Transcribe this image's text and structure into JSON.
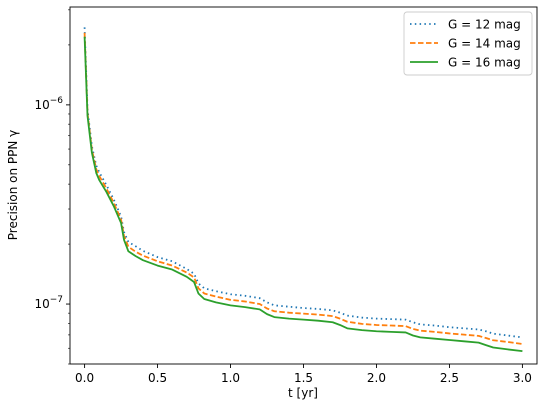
{
  "chart_data": {
    "type": "line",
    "xlabel": "t [yr]",
    "ylabel": "Precision on PPN γ",
    "xlim": [
      -0.1,
      3.1
    ],
    "ylim": [
      5e-08,
      3.1e-06
    ],
    "yscale": "log",
    "grid": false,
    "legend_position": "top-right",
    "x_ticks": [
      {
        "value": 0.0,
        "label": "0.0"
      },
      {
        "value": 0.5,
        "label": "0.5"
      },
      {
        "value": 1.0,
        "label": "1.0"
      },
      {
        "value": 1.5,
        "label": "1.5"
      },
      {
        "value": 2.0,
        "label": "2.0"
      },
      {
        "value": 2.5,
        "label": "2.5"
      },
      {
        "value": 3.0,
        "label": "3.0"
      }
    ],
    "y_ticks": [
      {
        "value": 1e-07,
        "base": "10",
        "exp": "−7"
      },
      {
        "value": 1e-06,
        "base": "10",
        "exp": "−6"
      }
    ],
    "series": [
      {
        "name": "G = 12 mag",
        "color": "#1f77b4",
        "style": "dotted",
        "x": [
          0.0,
          0.02,
          0.05,
          0.08,
          0.1,
          0.15,
          0.2,
          0.25,
          0.27,
          0.3,
          0.35,
          0.4,
          0.5,
          0.6,
          0.7,
          0.75,
          0.78,
          0.82,
          0.9,
          1.0,
          1.1,
          1.2,
          1.25,
          1.3,
          1.4,
          1.5,
          1.6,
          1.7,
          1.75,
          1.8,
          1.9,
          2.0,
          2.1,
          2.2,
          2.25,
          2.3,
          2.4,
          2.5,
          2.6,
          2.7,
          2.75,
          2.8,
          2.9,
          3.0
        ],
        "values": [
          2.45e-06,
          9.5e-07,
          6.2e-07,
          4.95e-07,
          4.6e-07,
          3.95e-07,
          3.35e-07,
          2.75e-07,
          2.3e-07,
          2.05e-07,
          1.95e-07,
          1.85e-07,
          1.72e-07,
          1.64e-07,
          1.5e-07,
          1.42e-07,
          1.27e-07,
          1.2e-07,
          1.16e-07,
          1.12e-07,
          1.1e-07,
          1.07e-07,
          1.02e-07,
          9.85e-08,
          9.7e-08,
          9.55e-08,
          9.45e-08,
          9.3e-08,
          9.05e-08,
          8.75e-08,
          8.55e-08,
          8.45e-08,
          8.4e-08,
          8.35e-08,
          8.1e-08,
          7.9e-08,
          7.8e-08,
          7.65e-08,
          7.55e-08,
          7.45e-08,
          7.3e-08,
          7.1e-08,
          6.95e-08,
          6.8e-08
        ]
      },
      {
        "name": "G = 14 mag",
        "color": "#ff7f0e",
        "style": "dashed",
        "x": [
          0.0,
          0.02,
          0.05,
          0.08,
          0.1,
          0.15,
          0.2,
          0.25,
          0.27,
          0.3,
          0.35,
          0.4,
          0.5,
          0.6,
          0.7,
          0.75,
          0.78,
          0.82,
          0.9,
          1.0,
          1.1,
          1.2,
          1.25,
          1.3,
          1.4,
          1.5,
          1.6,
          1.7,
          1.75,
          1.8,
          1.9,
          2.0,
          2.1,
          2.2,
          2.25,
          2.3,
          2.4,
          2.5,
          2.6,
          2.7,
          2.75,
          2.8,
          2.9,
          3.0
        ],
        "values": [
          2.3e-06,
          9.1e-07,
          5.95e-07,
          4.75e-07,
          4.4e-07,
          3.8e-07,
          3.22e-07,
          2.65e-07,
          2.2e-07,
          1.94e-07,
          1.83e-07,
          1.75e-07,
          1.64e-07,
          1.56e-07,
          1.44e-07,
          1.36e-07,
          1.2e-07,
          1.13e-07,
          1.09e-07,
          1.05e-07,
          1.03e-07,
          1e-07,
          9.5e-08,
          9.2e-08,
          9.05e-08,
          8.95e-08,
          8.85e-08,
          8.7e-08,
          8.45e-08,
          8.15e-08,
          7.95e-08,
          7.85e-08,
          7.8e-08,
          7.75e-08,
          7.5e-08,
          7.35e-08,
          7.25e-08,
          7.12e-08,
          7.02e-08,
          6.92e-08,
          6.75e-08,
          6.58e-08,
          6.45e-08,
          6.3e-08
        ]
      },
      {
        "name": "G = 16 mag",
        "color": "#2ca02c",
        "style": "solid",
        "x": [
          0.0,
          0.02,
          0.05,
          0.08,
          0.1,
          0.15,
          0.2,
          0.25,
          0.27,
          0.3,
          0.35,
          0.4,
          0.5,
          0.6,
          0.7,
          0.75,
          0.78,
          0.82,
          0.9,
          1.0,
          1.1,
          1.2,
          1.25,
          1.3,
          1.4,
          1.5,
          1.6,
          1.7,
          1.75,
          1.8,
          1.9,
          2.0,
          2.1,
          2.2,
          2.25,
          2.3,
          2.4,
          2.5,
          2.6,
          2.7,
          2.75,
          2.8,
          2.9,
          3.0
        ],
        "values": [
          2.2e-06,
          8.8e-07,
          5.75e-07,
          4.55e-07,
          4.2e-07,
          3.65e-07,
          3.1e-07,
          2.55e-07,
          2.1e-07,
          1.84e-07,
          1.74e-07,
          1.66e-07,
          1.56e-07,
          1.49e-07,
          1.37e-07,
          1.29e-07,
          1.13e-07,
          1.06e-07,
          1.02e-07,
          9.85e-08,
          9.65e-08,
          9.4e-08,
          8.9e-08,
          8.6e-08,
          8.45e-08,
          8.35e-08,
          8.25e-08,
          8.1e-08,
          7.85e-08,
          7.55e-08,
          7.4e-08,
          7.3e-08,
          7.25e-08,
          7.2e-08,
          6.95e-08,
          6.8e-08,
          6.7e-08,
          6.6e-08,
          6.5e-08,
          6.4e-08,
          6.22e-08,
          6.05e-08,
          5.92e-08,
          5.8e-08
        ]
      }
    ]
  }
}
